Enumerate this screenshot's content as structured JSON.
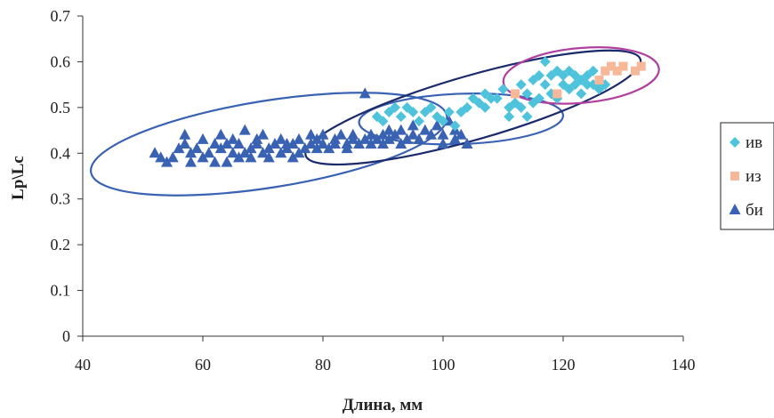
{
  "chart_data": {
    "type": "scatter",
    "xlabel": "Длина, мм",
    "ylabel": "Lp\\Lc",
    "xlim": [
      40,
      140
    ],
    "ylim": [
      0,
      0.7
    ],
    "xticks": [
      "40",
      "60",
      "80",
      "100",
      "120",
      "140"
    ],
    "yticks": [
      "0",
      "0.1",
      "0.2",
      "0.3",
      "0.4",
      "0.5",
      "0.6",
      "0.7"
    ],
    "grid": false,
    "legend_position": "right",
    "series": [
      {
        "name": "ив",
        "marker": "diamond",
        "color": "#4fc3dc",
        "points": [
          [
            89,
            0.48
          ],
          [
            90,
            0.47
          ],
          [
            91,
            0.49
          ],
          [
            92,
            0.5
          ],
          [
            93,
            0.48
          ],
          [
            94,
            0.5
          ],
          [
            95,
            0.49
          ],
          [
            96,
            0.47
          ],
          [
            97,
            0.49
          ],
          [
            98,
            0.5
          ],
          [
            99,
            0.48
          ],
          [
            100,
            0.47
          ],
          [
            101,
            0.49
          ],
          [
            102,
            0.46
          ],
          [
            103,
            0.49
          ],
          [
            104,
            0.5
          ],
          [
            105,
            0.52
          ],
          [
            106,
            0.51
          ],
          [
            107,
            0.53
          ],
          [
            108,
            0.52
          ],
          [
            109,
            0.52
          ],
          [
            110,
            0.54
          ],
          [
            111,
            0.5
          ],
          [
            111,
            0.48
          ],
          [
            112,
            0.51
          ],
          [
            113,
            0.5
          ],
          [
            113,
            0.55
          ],
          [
            114,
            0.53
          ],
          [
            115,
            0.51
          ],
          [
            115,
            0.56
          ],
          [
            116,
            0.52
          ],
          [
            116,
            0.57
          ],
          [
            117,
            0.6
          ],
          [
            117,
            0.55
          ],
          [
            118,
            0.53
          ],
          [
            118,
            0.57
          ],
          [
            119,
            0.52
          ],
          [
            119,
            0.58
          ],
          [
            120,
            0.55
          ],
          [
            120,
            0.57
          ],
          [
            121,
            0.54
          ],
          [
            121,
            0.58
          ],
          [
            122,
            0.57
          ],
          [
            122,
            0.55
          ],
          [
            123,
            0.53
          ],
          [
            123,
            0.56
          ],
          [
            124,
            0.55
          ],
          [
            124,
            0.57
          ],
          [
            125,
            0.55
          ],
          [
            125,
            0.58
          ],
          [
            126,
            0.54
          ],
          [
            127,
            0.55
          ],
          [
            119,
            0.52
          ],
          [
            114,
            0.48
          ],
          [
            107,
            0.5
          ]
        ]
      },
      {
        "name": "из",
        "marker": "square",
        "color": "#f7b89a",
        "points": [
          [
            112,
            0.53
          ],
          [
            119,
            0.53
          ],
          [
            126,
            0.56
          ],
          [
            127,
            0.58
          ],
          [
            128,
            0.59
          ],
          [
            129,
            0.58
          ],
          [
            130,
            0.59
          ],
          [
            132,
            0.58
          ],
          [
            133,
            0.59
          ]
        ]
      },
      {
        "name": "би",
        "marker": "triangle",
        "color": "#3a62b3",
        "points": [
          [
            52,
            0.4
          ],
          [
            53,
            0.39
          ],
          [
            54,
            0.38
          ],
          [
            55,
            0.39
          ],
          [
            56,
            0.41
          ],
          [
            57,
            0.44
          ],
          [
            57,
            0.42
          ],
          [
            58,
            0.4
          ],
          [
            58,
            0.38
          ],
          [
            59,
            0.41
          ],
          [
            60,
            0.39
          ],
          [
            60,
            0.43
          ],
          [
            61,
            0.4
          ],
          [
            62,
            0.42
          ],
          [
            62,
            0.38
          ],
          [
            63,
            0.41
          ],
          [
            63,
            0.44
          ],
          [
            64,
            0.42
          ],
          [
            64,
            0.38
          ],
          [
            65,
            0.4
          ],
          [
            65,
            0.43
          ],
          [
            66,
            0.39
          ],
          [
            66,
            0.42
          ],
          [
            67,
            0.4
          ],
          [
            67,
            0.45
          ],
          [
            68,
            0.41
          ],
          [
            68,
            0.39
          ],
          [
            69,
            0.43
          ],
          [
            69,
            0.42
          ],
          [
            70,
            0.4
          ],
          [
            70,
            0.44
          ],
          [
            71,
            0.41
          ],
          [
            71,
            0.39
          ],
          [
            72,
            0.42
          ],
          [
            73,
            0.4
          ],
          [
            73,
            0.43
          ],
          [
            74,
            0.41
          ],
          [
            74,
            0.42
          ],
          [
            75,
            0.39
          ],
          [
            75,
            0.42
          ],
          [
            76,
            0.4
          ],
          [
            76,
            0.43
          ],
          [
            77,
            0.41
          ],
          [
            78,
            0.42
          ],
          [
            78,
            0.44
          ],
          [
            79,
            0.41
          ],
          [
            79,
            0.43
          ],
          [
            80,
            0.42
          ],
          [
            80,
            0.44
          ],
          [
            81,
            0.41
          ],
          [
            82,
            0.43
          ],
          [
            82,
            0.42
          ],
          [
            83,
            0.44
          ],
          [
            84,
            0.42
          ],
          [
            84,
            0.41
          ],
          [
            85,
            0.43
          ],
          [
            85,
            0.44
          ],
          [
            86,
            0.42
          ],
          [
            87,
            0.43
          ],
          [
            87,
            0.53
          ],
          [
            88,
            0.44
          ],
          [
            88,
            0.42
          ],
          [
            89,
            0.43
          ],
          [
            90,
            0.44
          ],
          [
            90,
            0.42
          ],
          [
            91,
            0.45
          ],
          [
            91,
            0.43
          ],
          [
            92,
            0.44
          ],
          [
            93,
            0.42
          ],
          [
            93,
            0.45
          ],
          [
            94,
            0.43
          ],
          [
            95,
            0.44
          ],
          [
            95,
            0.46
          ],
          [
            96,
            0.43
          ],
          [
            97,
            0.45
          ],
          [
            98,
            0.44
          ],
          [
            99,
            0.46
          ],
          [
            100,
            0.44
          ],
          [
            100,
            0.42
          ],
          [
            101,
            0.47
          ],
          [
            102,
            0.43
          ],
          [
            102,
            0.45
          ],
          [
            103,
            0.44
          ],
          [
            104,
            0.42
          ]
        ]
      }
    ],
    "ellipses": [
      {
        "cx": 71,
        "cy": 0.42,
        "rx": 30,
        "ry": 0.095,
        "angle_deg": -9,
        "color": "#3a62b3"
      },
      {
        "cx": 103,
        "cy": 0.475,
        "rx": 17,
        "ry": 0.055,
        "angle_deg": -2,
        "color": "#3a62b3"
      },
      {
        "cx": 105,
        "cy": 0.5,
        "rx": 29,
        "ry": 0.07,
        "angle_deg": -16,
        "color": "#1a2a6c"
      },
      {
        "cx": 123,
        "cy": 0.57,
        "rx": 13,
        "ry": 0.06,
        "angle_deg": -5,
        "color": "#b040a0"
      }
    ]
  }
}
